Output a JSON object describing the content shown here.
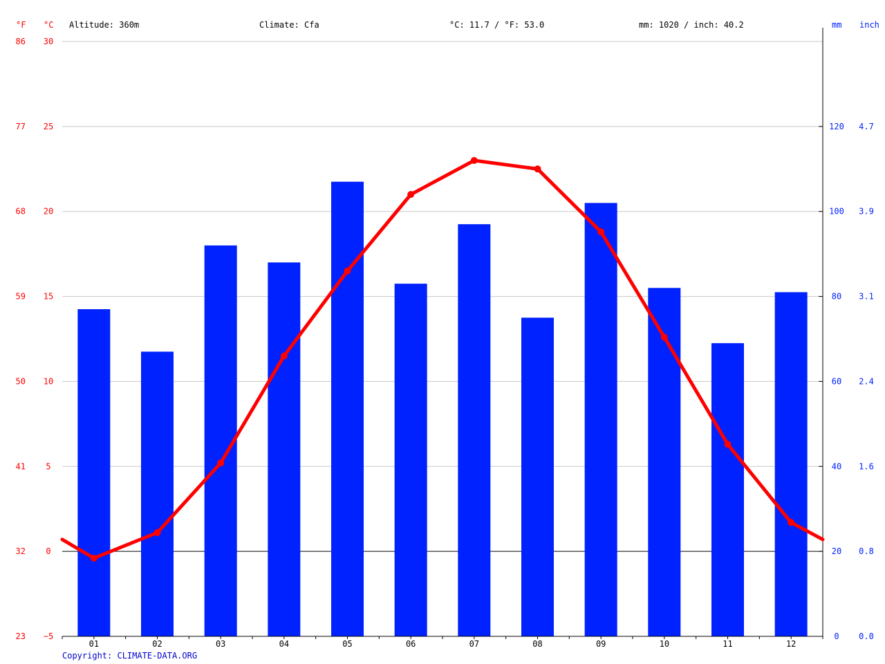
{
  "header": {
    "unit_f": "°F",
    "unit_c": "°C",
    "altitude": "Altitude: 360m",
    "climate": "Climate: Cfa",
    "temperature_summary": "°C: 11.7 / °F: 53.0",
    "precip_summary": "mm: 1020 / inch: 40.2",
    "unit_mm": "mm",
    "unit_inch": "inch"
  },
  "footer": {
    "copyright": "Copyright: CLIMATE-DATA.ORG"
  },
  "colors": {
    "temperature": "#ff0000",
    "precipitation": "#0022ff",
    "grid": "#c8c8c8",
    "axis": "#000000",
    "copyright": "#0000cc"
  },
  "chart_data": {
    "type": "bar",
    "categories": [
      "01",
      "02",
      "03",
      "04",
      "05",
      "06",
      "07",
      "08",
      "09",
      "10",
      "11",
      "12"
    ],
    "series": [
      {
        "type": "bar",
        "axis": "right",
        "unit": "mm",
        "color": "#0022ff",
        "values": [
          77,
          67,
          92,
          88,
          107,
          83,
          97,
          75,
          102,
          82,
          69,
          81
        ]
      },
      {
        "type": "line",
        "axis": "left",
        "unit": "°C",
        "color": "#ff0000",
        "values": [
          -0.4,
          1.1,
          5.2,
          11.5,
          16.5,
          21.0,
          23.0,
          22.5,
          18.8,
          12.6,
          6.3,
          1.7
        ],
        "start_value": 0.7,
        "end_value": 0.7
      }
    ],
    "y_left": {
      "label_c": "°C",
      "label_f": "°F",
      "ylim": [
        -5,
        30
      ],
      "ticks_c": [
        "30",
        "25",
        "20",
        "15",
        "10",
        "5",
        "0",
        "−5"
      ],
      "ticks_f": [
        "86",
        "77",
        "68",
        "59",
        "50",
        "41",
        "32",
        "23"
      ]
    },
    "y_right": {
      "label_mm": "mm",
      "label_inch": "inch",
      "ylim": [
        0,
        140
      ],
      "ticks_mm": [
        "120",
        "100",
        "80",
        "60",
        "40",
        "20",
        "0"
      ],
      "ticks_inch": [
        "4.7",
        "3.9",
        "3.1",
        "2.4",
        "1.6",
        "0.8",
        "0.0"
      ]
    },
    "grid": true,
    "zero_line": true
  }
}
